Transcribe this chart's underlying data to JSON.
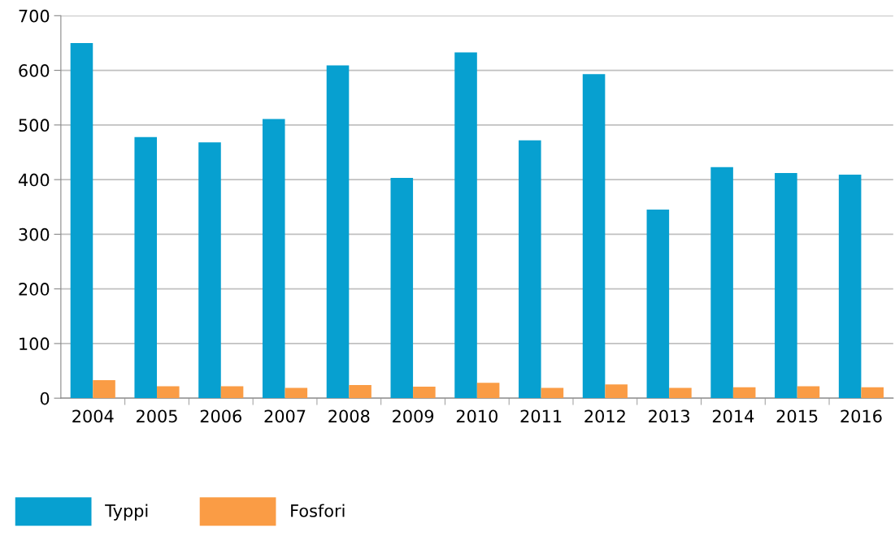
{
  "chart_data": {
    "type": "bar",
    "categories": [
      "2004",
      "2005",
      "2006",
      "2007",
      "2008",
      "2009",
      "2010",
      "2011",
      "2012",
      "2013",
      "2014",
      "2015",
      "2016"
    ],
    "series": [
      {
        "name": "Typpi",
        "color": "#07a0d0",
        "values": [
          650,
          478,
          468,
          511,
          609,
          403,
          633,
          472,
          593,
          345,
          423,
          412,
          409
        ]
      },
      {
        "name": "Fosfori",
        "color": "#fa9c45",
        "values": [
          33,
          22,
          22,
          19,
          24,
          21,
          28,
          19,
          25,
          19,
          20,
          22,
          20
        ]
      }
    ],
    "ylim": [
      0,
      700
    ],
    "yticks": [
      0,
      100,
      200,
      300,
      400,
      500,
      600,
      700
    ],
    "grid": "y",
    "legend": "bottom left"
  }
}
